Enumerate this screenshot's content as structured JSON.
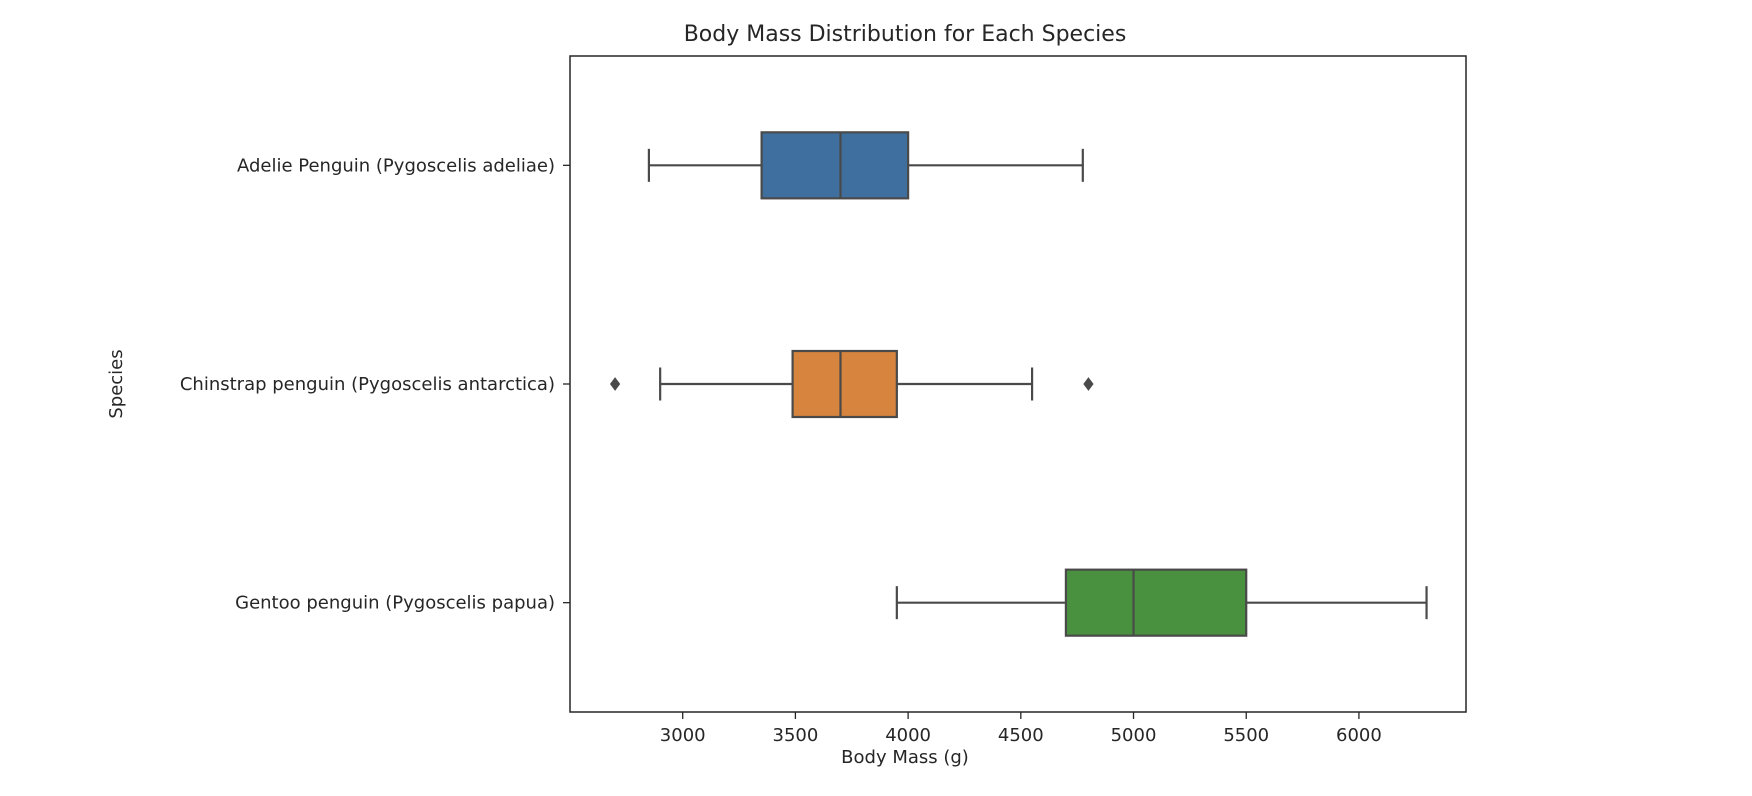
{
  "chart_data": {
    "type": "boxplot",
    "orientation": "horizontal",
    "title": "Body Mass Distribution for Each Species",
    "xlabel": "Body Mass (g)",
    "ylabel": "Species",
    "xlim": [
      2500,
      6475
    ],
    "xticks": [
      3000,
      3500,
      4000,
      4500,
      5000,
      5500,
      6000
    ],
    "grid": false,
    "legend": "none",
    "series": [
      {
        "name": "Adelie Penguin (Pygoscelis adeliae)",
        "color": "#3e6f9f",
        "whisker_low": 2850,
        "q1": 3350,
        "median": 3700,
        "q3": 4000,
        "whisker_high": 4775,
        "outliers": []
      },
      {
        "name": "Chinstrap penguin (Pygoscelis antarctica)",
        "color": "#d6843e",
        "whisker_low": 2900,
        "q1": 3487.5,
        "median": 3700,
        "q3": 3950,
        "whisker_high": 4550,
        "outliers": [
          2700,
          4800
        ]
      },
      {
        "name": "Gentoo penguin (Pygoscelis papua)",
        "color": "#4a913f",
        "whisker_low": 3950,
        "q1": 4700,
        "median": 5000,
        "q3": 5500,
        "whisker_high": 6300,
        "outliers": []
      }
    ]
  }
}
